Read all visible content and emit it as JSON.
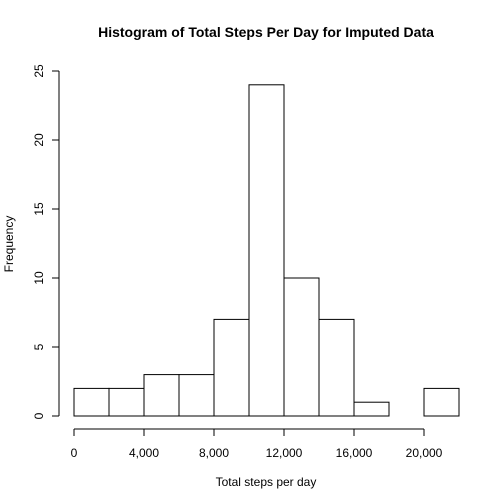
{
  "chart_data": {
    "type": "bar",
    "title": "Histogram of Total Steps Per Day for Imputed Data",
    "xlabel": "Total steps per day",
    "ylabel": "Frequency",
    "bin_edges": [
      0,
      2000,
      4000,
      6000,
      8000,
      10000,
      12000,
      14000,
      16000,
      18000,
      20000,
      22000
    ],
    "values": [
      2,
      2,
      3,
      3,
      7,
      24,
      10,
      7,
      1,
      0,
      2
    ],
    "xlim": [
      0,
      22000
    ],
    "ylim": [
      0,
      25
    ],
    "x_ticks": [
      0,
      4000,
      8000,
      12000,
      16000,
      20000
    ],
    "x_tick_labels": [
      "0",
      "4,000",
      "8,000",
      "12,000",
      "16,000",
      "20,000"
    ],
    "y_ticks": [
      0,
      5,
      10,
      15,
      20,
      25
    ],
    "y_tick_labels": [
      "0",
      "5",
      "10",
      "15",
      "20",
      "25"
    ],
    "bar_fill": "#ffffff",
    "bar_stroke": "#000000",
    "grid": false
  }
}
